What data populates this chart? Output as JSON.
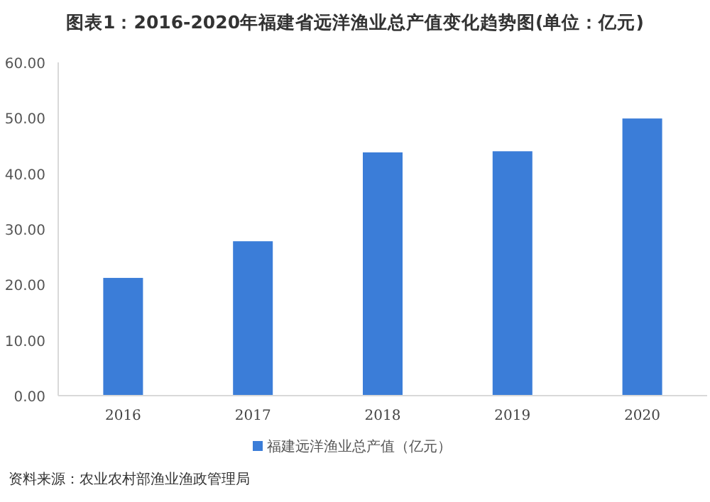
{
  "chart_data": {
    "type": "bar",
    "title": "图表1：2016-2020年福建省远洋渔业总产值变化趋势图(单位：亿元)",
    "categories": [
      "2016",
      "2017",
      "2018",
      "2019",
      "2020"
    ],
    "series": [
      {
        "name": "福建远洋渔业总产值（亿元）",
        "color": "#3b7dd8",
        "values": [
          21.2,
          27.8,
          43.8,
          44.0,
          49.9
        ]
      }
    ],
    "ylim": [
      0,
      60
    ],
    "yticks": [
      {
        "value": 0,
        "label": "0.00"
      },
      {
        "value": 10,
        "label": "10.00"
      },
      {
        "value": 20,
        "label": "20.00"
      },
      {
        "value": 30,
        "label": "30.00"
      },
      {
        "value": 40,
        "label": "40.00"
      },
      {
        "value": 50,
        "label": "50.00"
      },
      {
        "value": 60,
        "label": "60.00"
      }
    ],
    "legend": "bottom",
    "annotations": [
      "资料来源：农业农村部渔业渔政管理局"
    ]
  }
}
